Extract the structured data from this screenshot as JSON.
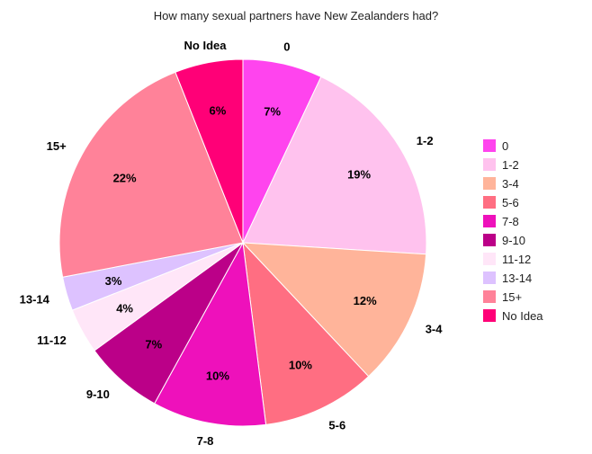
{
  "chart_data": {
    "type": "pie",
    "title": "How many sexual partners have New Zealanders had?",
    "legend_position": "right",
    "slices": [
      {
        "label": "0",
        "value": 7,
        "pct_label": "7%",
        "color": "#ff44ee"
      },
      {
        "label": "1-2",
        "value": 19,
        "pct_label": "19%",
        "color": "#ffc2ee"
      },
      {
        "label": "3-4",
        "value": 12,
        "pct_label": "12%",
        "color": "#ffb49a"
      },
      {
        "label": "5-6",
        "value": 10,
        "pct_label": "10%",
        "color": "#ff6e82"
      },
      {
        "label": "7-8",
        "value": 10,
        "pct_label": "10%",
        "color": "#ee11bb"
      },
      {
        "label": "9-10",
        "value": 7,
        "pct_label": "7%",
        "color": "#bb0088"
      },
      {
        "label": "11-12",
        "value": 4,
        "pct_label": "4%",
        "color": "#ffe6f8"
      },
      {
        "label": "13-14",
        "value": 3,
        "pct_label": "3%",
        "color": "#ddc2ff"
      },
      {
        "label": "15+",
        "value": 22,
        "pct_label": "22%",
        "color": "#ff8299"
      },
      {
        "label": "No Idea",
        "value": 6,
        "pct_label": "6%",
        "color": "#ff0077"
      }
    ]
  }
}
